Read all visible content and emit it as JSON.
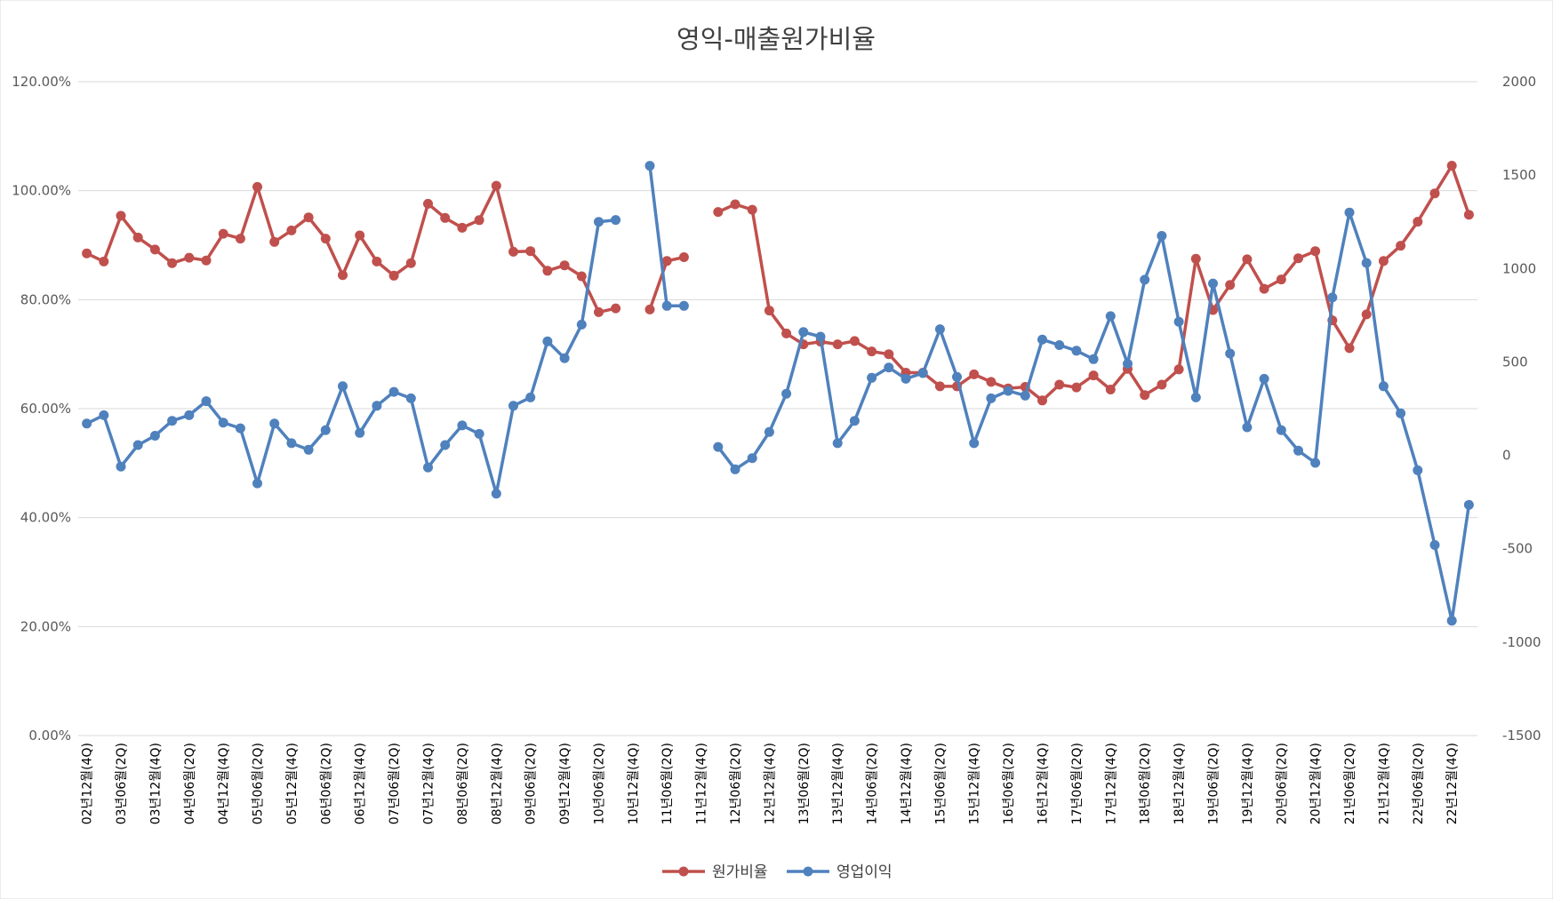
{
  "chart_data": {
    "type": "line",
    "title": "영익-매출원가비율",
    "xlabel": "",
    "ylabel": "",
    "y_left": {
      "min": 0,
      "max": 1.2,
      "step": 0.2,
      "format": "percent2",
      "ticks": [
        "0.00%",
        "20.00%",
        "40.00%",
        "60.00%",
        "80.00%",
        "100.00%",
        "120.00%"
      ]
    },
    "y_right": {
      "min": -1500,
      "max": 2000,
      "step": 500,
      "ticks": [
        "-1500",
        "-1000",
        "-500",
        "0",
        "500",
        "1000",
        "1500",
        "2000"
      ]
    },
    "grid": true,
    "legend_position": "bottom",
    "x": [
      "02년12월(4Q)",
      "03년03월(1Q)",
      "03년06월(2Q)",
      "03년09월(3Q)",
      "03년12월(4Q)",
      "04년03월(1Q)",
      "04년06월(2Q)",
      "04년09월(3Q)",
      "04년12월(4Q)",
      "05년03월(1Q)",
      "05년06월(2Q)",
      "05년09월(3Q)",
      "05년12월(4Q)",
      "06년03월(1Q)",
      "06년06월(2Q)",
      "06년09월(3Q)",
      "06년12월(4Q)",
      "07년03월(1Q)",
      "07년06월(2Q)",
      "07년09월(3Q)",
      "07년12월(4Q)",
      "08년03월(1Q)",
      "08년06월(2Q)",
      "08년09월(3Q)",
      "08년12월(4Q)",
      "09년03월(1Q)",
      "09년06월(2Q)",
      "09년09월(3Q)",
      "09년12월(4Q)",
      "10년03월(1Q)",
      "10년06월(2Q)",
      "10년09월(3Q)",
      "10년12월(4Q)",
      "11년03월(1Q)",
      "11년06월(2Q)",
      "11년09월(3Q)",
      "11년12월(4Q)",
      "12년03월(1Q)",
      "12년06월(2Q)",
      "12년09월(3Q)",
      "12년12월(4Q)",
      "13년03월(1Q)",
      "13년06월(2Q)",
      "13년09월(3Q)",
      "13년12월(4Q)",
      "14년03월(1Q)",
      "14년06월(2Q)",
      "14년09월(3Q)",
      "14년12월(4Q)",
      "15년03월(1Q)",
      "15년06월(2Q)",
      "15년09월(3Q)",
      "15년12월(4Q)",
      "16년03월(1Q)",
      "16년06월(2Q)",
      "16년09월(3Q)",
      "16년12월(4Q)",
      "17년03월(1Q)",
      "17년06월(2Q)",
      "17년09월(3Q)",
      "17년12월(4Q)",
      "18년03월(1Q)",
      "18년06월(2Q)",
      "18년09월(3Q)",
      "18년12월(4Q)",
      "19년03월(1Q)",
      "19년06월(2Q)",
      "19년09월(3Q)",
      "19년12월(4Q)",
      "20년03월(1Q)",
      "20년06월(2Q)",
      "20년09월(3Q)",
      "20년12월(4Q)",
      "21년03월(1Q)",
      "21년06월(2Q)",
      "21년09월(3Q)",
      "21년12월(4Q)",
      "22년03월(1Q)",
      "22년06월(2Q)",
      "22년09월(3Q)",
      "22년12월(4Q)",
      "23년03월(1Q)"
    ],
    "x_tick_labels": [
      "02년12월(4Q)",
      "03년06월(2Q)",
      "03년12월(4Q)",
      "04년06월(2Q)",
      "04년12월(4Q)",
      "05년06월(2Q)",
      "05년12월(4Q)",
      "06년06월(2Q)",
      "06년12월(4Q)",
      "07년06월(2Q)",
      "07년12월(4Q)",
      "08년06월(2Q)",
      "08년12월(4Q)",
      "09년06월(2Q)",
      "09년12월(4Q)",
      "10년06월(2Q)",
      "10년12월(4Q)",
      "11년06월(2Q)",
      "11년12월(4Q)",
      "12년06월(2Q)",
      "12년12월(4Q)",
      "13년06월(2Q)",
      "13년12월(4Q)",
      "14년06월(2Q)",
      "14년12월(4Q)",
      "15년06월(2Q)",
      "15년12월(4Q)",
      "16년06월(2Q)",
      "16년12월(4Q)",
      "17년06월(2Q)",
      "17년12월(4Q)",
      "18년06월(2Q)",
      "18년12월(4Q)",
      "19년06월(2Q)",
      "19년12월(4Q)",
      "20년06월(2Q)",
      "20년12월(4Q)",
      "21년06월(2Q)",
      "21년12월(4Q)",
      "22년06월(2Q)",
      "22년12월(4Q)"
    ],
    "series": [
      {
        "name": "원가비율",
        "axis": "left",
        "color": "#C0504D",
        "values": [
          0.885,
          0.87,
          0.954,
          0.914,
          0.892,
          0.867,
          0.877,
          0.872,
          0.921,
          0.912,
          1.007,
          0.906,
          0.927,
          0.951,
          0.912,
          0.845,
          0.918,
          0.87,
          0.844,
          0.867,
          0.976,
          0.95,
          0.932,
          0.946,
          1.009,
          0.888,
          0.889,
          0.853,
          0.863,
          0.843,
          0.777,
          0.784,
          null,
          0.782,
          0.871,
          0.878,
          null,
          0.961,
          0.975,
          0.965,
          0.78,
          0.738,
          0.718,
          0.723,
          0.718,
          0.724,
          0.705,
          0.7,
          0.666,
          0.666,
          0.641,
          0.641,
          0.663,
          0.649,
          0.637,
          0.64,
          0.615,
          0.644,
          0.639,
          0.661,
          0.635,
          0.673,
          0.625,
          0.644,
          0.672,
          0.875,
          0.781,
          0.827,
          0.874,
          0.82,
          0.837,
          0.876,
          0.889,
          0.762,
          0.711,
          0.773,
          0.871,
          0.899,
          0.943,
          0.995,
          1.046,
          0.956
        ]
      },
      {
        "name": "영업이익",
        "axis": "right",
        "color": "#4F81BD",
        "values": [
          170,
          215,
          -60,
          55,
          105,
          185,
          215,
          290,
          175,
          145,
          -150,
          170,
          65,
          30,
          135,
          370,
          120,
          265,
          340,
          305,
          -65,
          55,
          160,
          115,
          -205,
          265,
          310,
          610,
          520,
          700,
          1250,
          1260,
          null,
          1550,
          800,
          800,
          null,
          45,
          -75,
          -15,
          125,
          330,
          660,
          635,
          65,
          185,
          415,
          470,
          410,
          440,
          675,
          420,
          65,
          305,
          345,
          320,
          620,
          590,
          560,
          515,
          745,
          490,
          940,
          1175,
          715,
          310,
          920,
          545,
          150,
          410,
          135,
          25,
          -40,
          845,
          1300,
          1030,
          370,
          225,
          -80,
          -480,
          -885,
          -265
        ]
      }
    ]
  }
}
